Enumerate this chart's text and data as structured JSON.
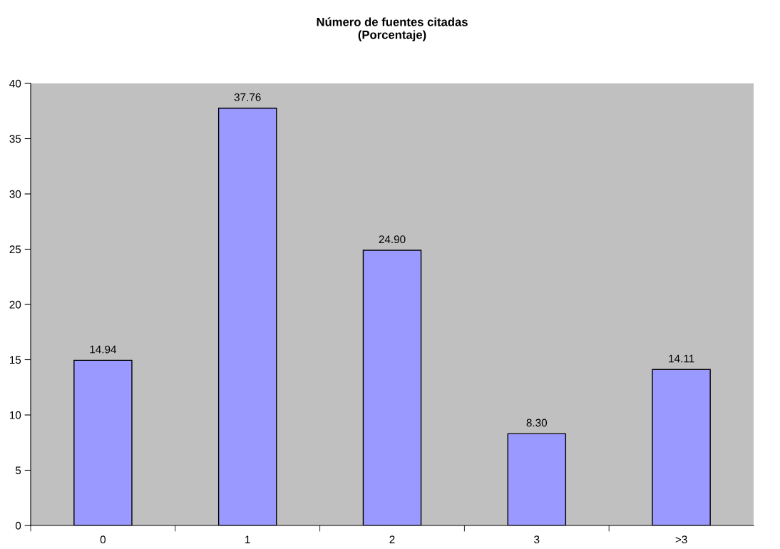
{
  "chart_data": {
    "type": "bar",
    "title": "Número de fuentes citadas\n(Porcentaje)",
    "categories": [
      "0",
      "1",
      "2",
      "3",
      ">3"
    ],
    "values": [
      14.94,
      37.76,
      24.9,
      8.3,
      14.11
    ],
    "value_labels": [
      "14.94",
      "37.76",
      "24.90",
      "8.30",
      "14.11"
    ],
    "color": "#9999ff",
    "ylim": [
      0,
      40
    ],
    "yticks": [
      0,
      5,
      10,
      15,
      20,
      25,
      30,
      35,
      40
    ],
    "grid": false
  }
}
